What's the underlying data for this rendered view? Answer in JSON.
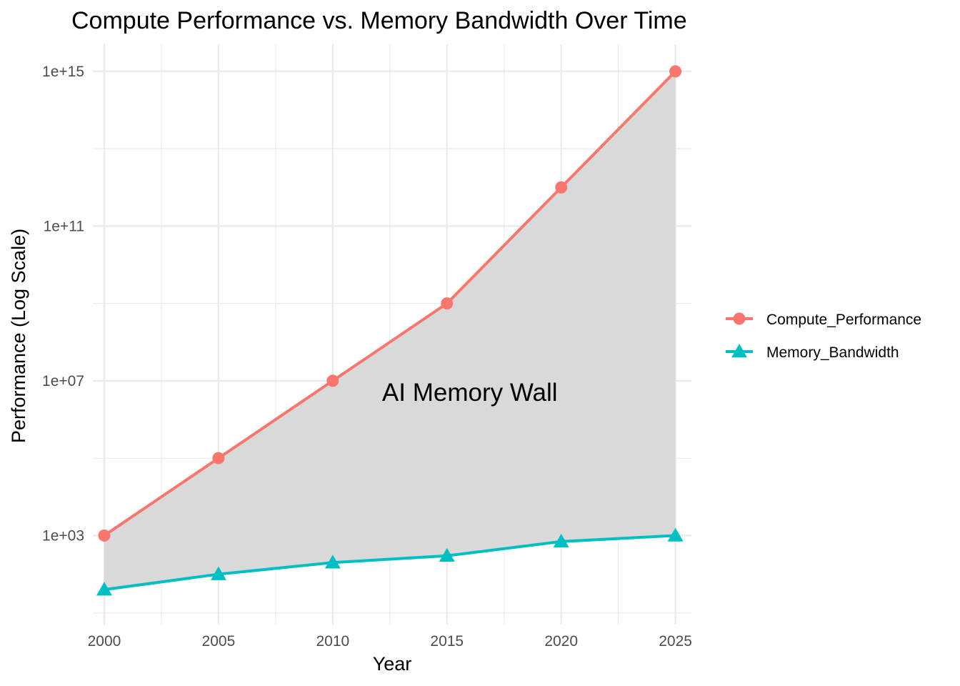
{
  "chart_data": {
    "type": "line",
    "title": "Compute Performance vs. Memory Bandwidth Over Time",
    "xlabel": "Year",
    "ylabel": "Performance (Log Scale)",
    "y_scale": "log10",
    "x": [
      2000,
      2005,
      2010,
      2015,
      2020,
      2025
    ],
    "x_ticks": [
      "2000",
      "2005",
      "2010",
      "2015",
      "2020",
      "2025"
    ],
    "xlim": [
      1999.5,
      2025.7
    ],
    "y_ticks": [
      {
        "value": 1000.0,
        "label": "1e+03"
      },
      {
        "value": 10000000.0,
        "label": "1e+07"
      },
      {
        "value": 100000000000.0,
        "label": "1e+11"
      },
      {
        "value": 1000000000000000.0,
        "label": "1e+15"
      }
    ],
    "ylim": [
      5,
      5000000000000000.0
    ],
    "series": [
      {
        "name": "Compute_Performance",
        "color": "#F8766D",
        "marker": "circle",
        "values": [
          1000.0,
          100000.0,
          10000000.0,
          1000000000.0,
          1000000000000.0,
          1000000000000000.0
        ]
      },
      {
        "name": "Memory_Bandwidth",
        "color": "#00BFC4",
        "marker": "triangle",
        "values": [
          40,
          100,
          200,
          300,
          700,
          1000
        ]
      }
    ],
    "ribbon_fill": "#d9d9d9",
    "annotations": [
      {
        "text": "AI Memory Wall",
        "x": 2016,
        "y": 5000000.0
      }
    ],
    "grid": true,
    "legend_position": "right"
  }
}
